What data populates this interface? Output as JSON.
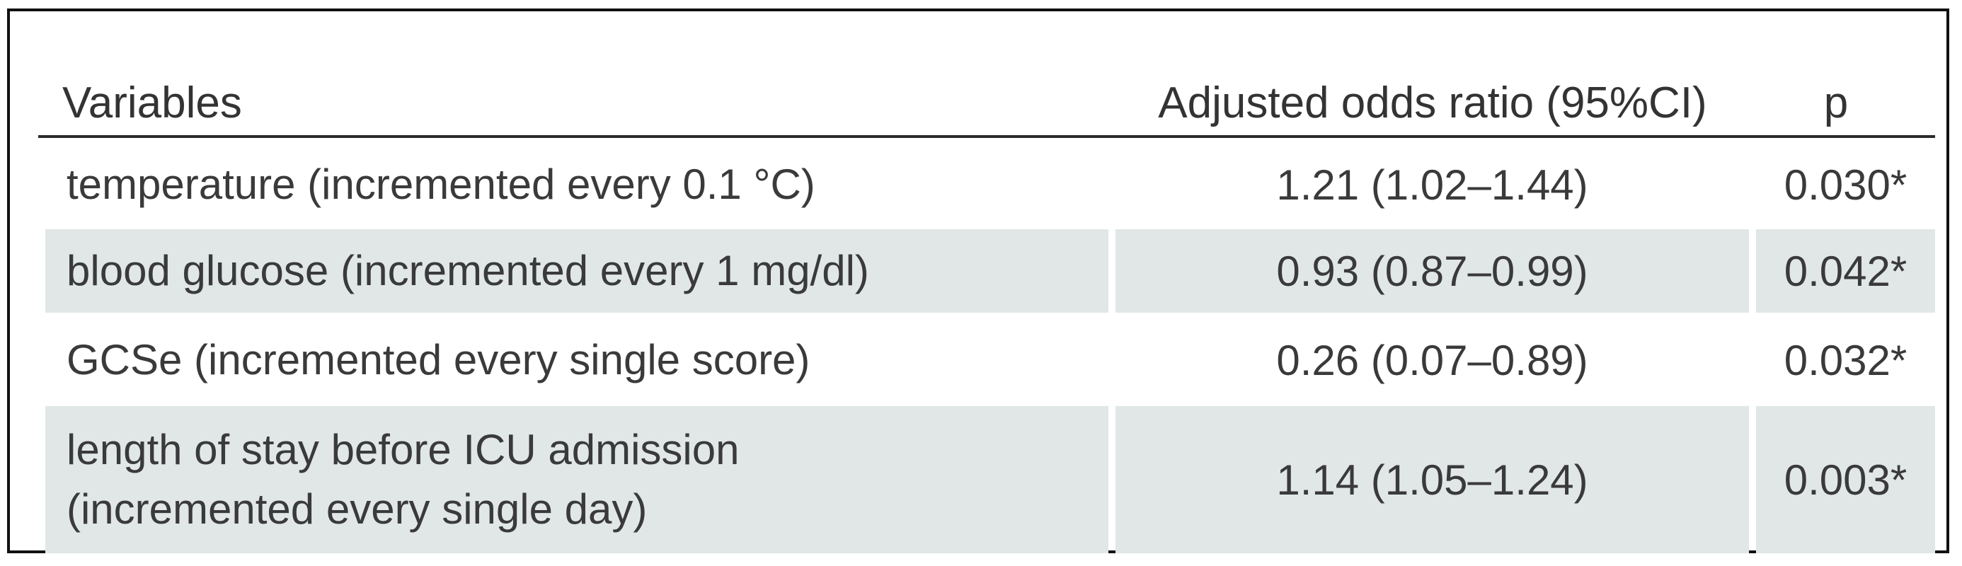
{
  "table": {
    "headers": {
      "variables": "Variables",
      "odds_ratio": "Adjusted odds ratio (95%CI)",
      "p": "p"
    },
    "rows": [
      {
        "variable_line1": "temperature (incremented every 0.1 °C)",
        "variable_line2": "",
        "odds_ratio": "1.21 (1.02–1.44)",
        "p": "0.030*"
      },
      {
        "variable_line1": "blood glucose (incremented every 1 mg/dl)",
        "variable_line2": "",
        "odds_ratio": "0.93 (0.87–0.99)",
        "p": "0.042*"
      },
      {
        "variable_line1": "GCSe (incremented every single score)",
        "variable_line2": "",
        "odds_ratio": "0.26 (0.07–0.89)",
        "p": "0.032*"
      },
      {
        "variable_line1": "length of stay before ICU admission",
        "variable_line2": "(incremented every single day)",
        "odds_ratio": "1.14 (1.05–1.24)",
        "p": "0.003*"
      }
    ]
  }
}
